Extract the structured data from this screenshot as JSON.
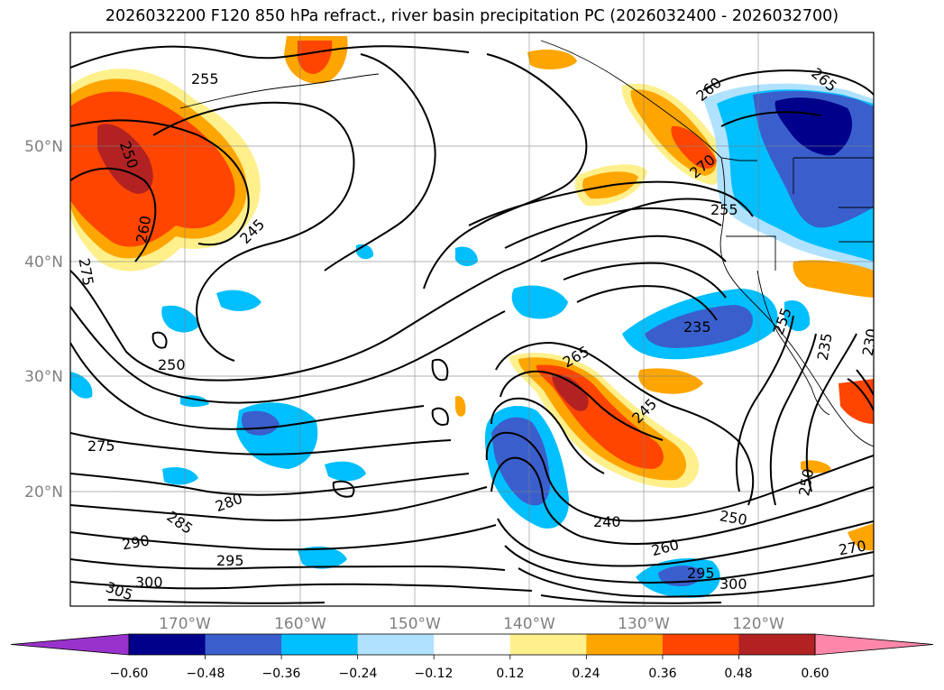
{
  "title": "2026032200 F120 850 hPa refract., river basin precipitation PC (2026032400 - 2026032700)",
  "map": {
    "lat_labels": [
      "50°N",
      "40°N",
      "30°N",
      "20°N"
    ],
    "lon_labels": [
      "170°W",
      "160°W",
      "150°W",
      "140°W",
      "130°W",
      "120°W"
    ]
  },
  "colorbar": {
    "colors": [
      "#9932cc",
      "#00008b",
      "#3a5fcd",
      "#00bfff",
      "#b0e2ff",
      "#ffffff",
      "#fff08c",
      "#ffa500",
      "#ff4500",
      "#b22222",
      "#ff88aa"
    ],
    "ticks": [
      "−0.60",
      "−0.48",
      "−0.36",
      "−0.24",
      "−0.12",
      "0.12",
      "0.24",
      "0.36",
      "0.48",
      "0.60"
    ]
  },
  "contour_labels": [
    "255",
    "250",
    "260",
    "245",
    "275",
    "250",
    "275",
    "280",
    "285",
    "290",
    "295",
    "300",
    "305",
    "265",
    "245",
    "240",
    "250",
    "260",
    "295",
    "300",
    "270",
    "250",
    "235",
    "255",
    "235",
    "230",
    "260",
    "270",
    "265",
    "255"
  ]
}
